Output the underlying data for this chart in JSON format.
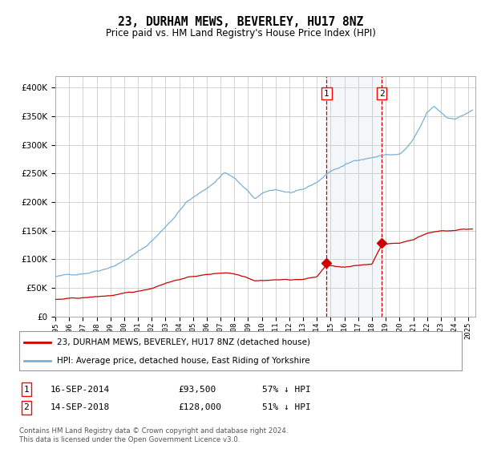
{
  "title": "23, DURHAM MEWS, BEVERLEY, HU17 8NZ",
  "subtitle": "Price paid vs. HM Land Registry's House Price Index (HPI)",
  "ylim": [
    0,
    420000
  ],
  "yticks": [
    0,
    50000,
    100000,
    150000,
    200000,
    250000,
    300000,
    350000,
    400000
  ],
  "xlim_start": 1995.0,
  "xlim_end": 2025.5,
  "background_color": "#ffffff",
  "plot_bg_color": "#ffffff",
  "grid_color": "#cccccc",
  "hpi_line_color": "#7bafd4",
  "price_line_color": "#cc0000",
  "sale1_x": 2014.71,
  "sale1_y": 93500,
  "sale2_x": 2018.71,
  "sale2_y": 128000,
  "legend_price_label": "23, DURHAM MEWS, BEVERLEY, HU17 8NZ (detached house)",
  "legend_hpi_label": "HPI: Average price, detached house, East Riding of Yorkshire",
  "copyright_text": "Contains HM Land Registry data © Crown copyright and database right 2024.\nThis data is licensed under the Open Government Licence v3.0."
}
